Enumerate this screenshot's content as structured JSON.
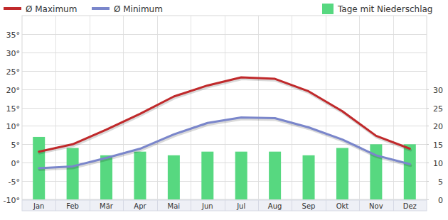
{
  "chart_data": {
    "type": "line",
    "categories": [
      "Jan",
      "Feb",
      "Mär",
      "Apr",
      "Mai",
      "Jun",
      "Jul",
      "Aug",
      "Sep",
      "Okt",
      "Nov",
      "Dez"
    ],
    "series": [
      {
        "name": "Ø Maximum",
        "type": "line",
        "color": "#c0292b",
        "values": [
          3,
          5,
          9,
          13.3,
          18,
          21,
          23.2,
          22.8,
          19.4,
          14,
          7.3,
          3.8
        ]
      },
      {
        "name": "Ø Minimum",
        "type": "line",
        "color": "#7a86cb",
        "values": [
          -1.5,
          -1,
          1.3,
          3.8,
          7.7,
          10.8,
          12.3,
          12.1,
          9.6,
          6.3,
          2,
          -0.4
        ]
      },
      {
        "name": "Tage mit Niederschlag",
        "type": "bar",
        "color": "#57d880",
        "axis": "y2",
        "values": [
          17,
          14,
          12,
          13,
          12,
          13,
          13,
          13,
          12,
          14,
          15,
          15
        ]
      }
    ],
    "ylim": [
      -10,
      40
    ],
    "yticks": [
      {
        "value": -10,
        "label": "-10°"
      },
      {
        "value": -5,
        "label": "-5°"
      },
      {
        "value": 0,
        "label": "0°"
      },
      {
        "value": 5,
        "label": "5°"
      },
      {
        "value": 10,
        "label": "10°"
      },
      {
        "value": 15,
        "label": "15°"
      },
      {
        "value": 20,
        "label": "20°"
      },
      {
        "value": 25,
        "label": "25°"
      },
      {
        "value": 30,
        "label": "30°"
      },
      {
        "value": 35,
        "label": "35°"
      }
    ],
    "y2lim": [
      0,
      50
    ],
    "y2ticks": [
      0,
      5,
      10,
      15,
      20,
      25,
      30
    ],
    "grid": true,
    "legend": "top"
  }
}
